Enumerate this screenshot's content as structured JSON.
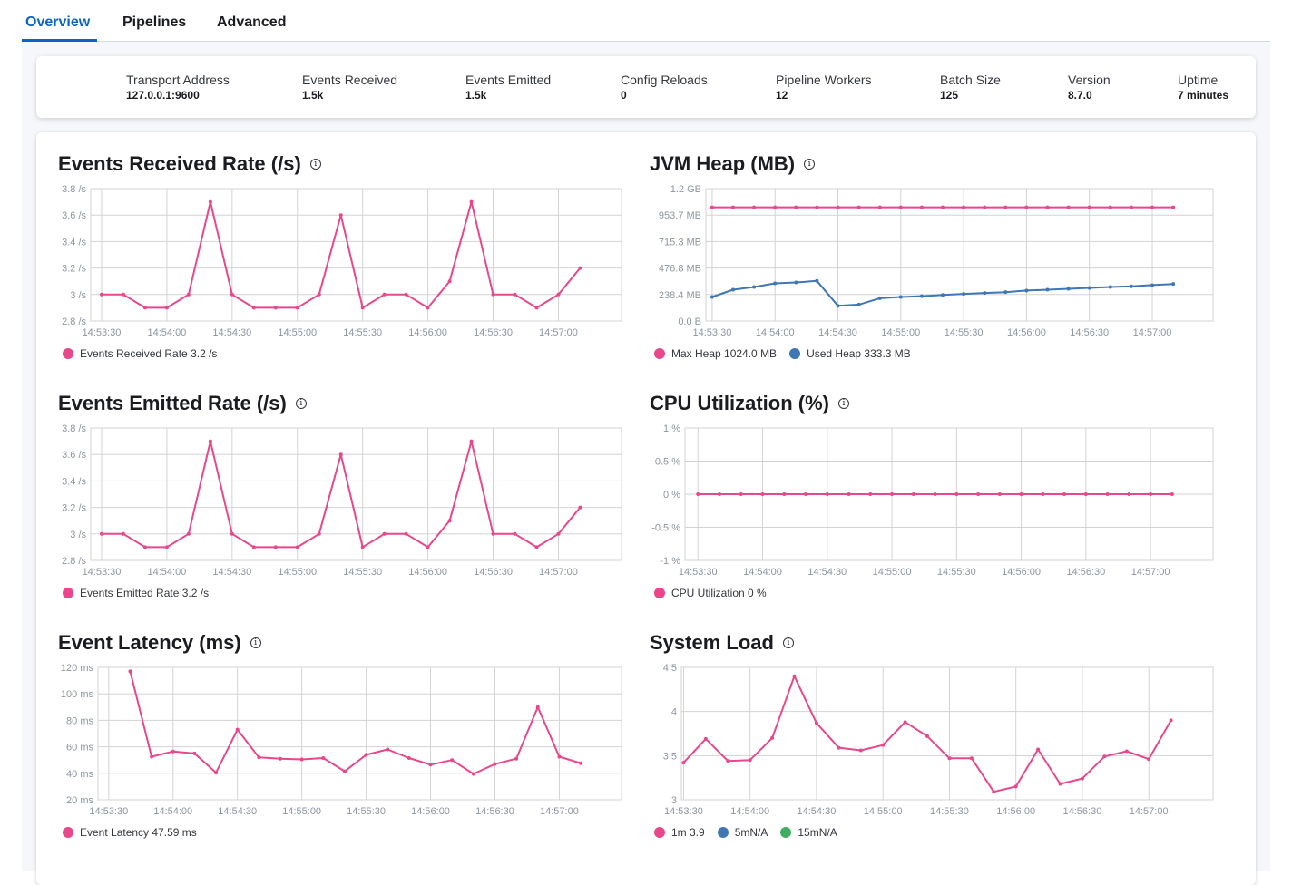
{
  "tabs": [
    {
      "label": "Overview",
      "active": true
    },
    {
      "label": "Pipelines"
    },
    {
      "label": "Advanced"
    }
  ],
  "stats": [
    {
      "label": "Transport Address",
      "value": "127.0.0.1:9600"
    },
    {
      "label": "Events Received",
      "value": "1.5k"
    },
    {
      "label": "Events Emitted",
      "value": "1.5k"
    },
    {
      "label": "Config Reloads",
      "value": "0"
    },
    {
      "label": "Pipeline Workers",
      "value": "12"
    },
    {
      "label": "Batch Size",
      "value": "125"
    },
    {
      "label": "Version",
      "value": "8.7.0"
    },
    {
      "label": "Uptime",
      "value": "7 minutes"
    }
  ],
  "colors": {
    "pink": "#e7488b",
    "blue": "#3f76b4",
    "green": "#3fae61",
    "accent": "#0b64c4"
  },
  "icons": {
    "info": "info-icon"
  },
  "chart_data": [
    {
      "id": "err",
      "type": "line",
      "title": "Events Received Rate (/s)",
      "info_icon": "ⓘ",
      "yticks": [
        2.8,
        3,
        3.2,
        3.4,
        3.6,
        3.8
      ],
      "ytick_labels": [
        "2.8 /s",
        "3 /s",
        "3.2 /s",
        "3.4 /s",
        "3.6 /s",
        "3.8 /s"
      ],
      "ylim": [
        2.8,
        3.8
      ],
      "xlim": [
        "14:53:25",
        "14:57:29"
      ],
      "xticks": [
        "14:53:30",
        "14:54:00",
        "14:54:30",
        "14:55:00",
        "14:55:30",
        "14:56:00",
        "14:56:30",
        "14:57:00"
      ],
      "grid": true,
      "series": [
        {
          "legend": "Events Received Rate 3.2 /s",
          "color": "#e7488b",
          "x": [
            "14:53:30",
            "14:53:40",
            "14:53:50",
            "14:54:00",
            "14:54:10",
            "14:54:20",
            "14:54:30",
            "14:54:40",
            "14:54:50",
            "14:55:00",
            "14:55:10",
            "14:55:20",
            "14:55:30",
            "14:55:40",
            "14:55:50",
            "14:56:00",
            "14:56:10",
            "14:56:20",
            "14:56:30",
            "14:56:40",
            "14:56:50",
            "14:57:00",
            "14:57:10"
          ],
          "y": [
            3,
            3,
            2.9,
            2.9,
            3,
            3.7,
            3,
            2.9,
            2.9,
            2.9,
            3,
            3.6,
            2.9,
            3,
            3,
            2.9,
            3.1,
            3.7,
            3,
            3,
            2.9,
            3,
            3.2
          ]
        }
      ]
    },
    {
      "id": "jvm",
      "type": "line",
      "title": "JVM Heap (MB)",
      "info_icon": "ⓘ",
      "yticks": [
        0,
        238.4,
        476.8,
        715.3,
        953.7,
        1192.1
      ],
      "ytick_labels": [
        "0.0 B",
        "238.4 MB",
        "476.8 MB",
        "715.3 MB",
        "953.7 MB",
        "1.2 GB"
      ],
      "ylim": [
        0,
        1192.1
      ],
      "xlim": [
        "14:53:27",
        "14:57:29"
      ],
      "xticks": [
        "14:53:30",
        "14:54:00",
        "14:54:30",
        "14:55:00",
        "14:55:30",
        "14:56:00",
        "14:56:30",
        "14:57:00"
      ],
      "grid": true,
      "series": [
        {
          "legend": "Max Heap 1024.0 MB",
          "color": "#e7488b",
          "x": [
            "14:53:30",
            "14:53:40",
            "14:53:50",
            "14:54:00",
            "14:54:10",
            "14:54:20",
            "14:54:30",
            "14:54:40",
            "14:54:50",
            "14:55:00",
            "14:55:10",
            "14:55:20",
            "14:55:30",
            "14:55:40",
            "14:55:50",
            "14:56:00",
            "14:56:10",
            "14:56:20",
            "14:56:30",
            "14:56:40",
            "14:56:50",
            "14:57:00",
            "14:57:10"
          ],
          "y": [
            1024,
            1024,
            1024,
            1024,
            1024,
            1024,
            1024,
            1024,
            1024,
            1024,
            1024,
            1024,
            1024,
            1024,
            1024,
            1024,
            1024,
            1024,
            1024,
            1024,
            1024,
            1024,
            1024
          ]
        },
        {
          "legend": "Used Heap 333.3 MB",
          "color": "#3f76b4",
          "x": [
            "14:53:30",
            "14:53:40",
            "14:53:50",
            "14:54:00",
            "14:54:10",
            "14:54:20",
            "14:54:30",
            "14:54:40",
            "14:54:50",
            "14:55:00",
            "14:55:10",
            "14:55:20",
            "14:55:30",
            "14:55:40",
            "14:55:50",
            "14:56:00",
            "14:56:10",
            "14:56:20",
            "14:56:30",
            "14:56:40",
            "14:56:50",
            "14:57:00",
            "14:57:10"
          ],
          "y": [
            216,
            282,
            306,
            339,
            347,
            361,
            137,
            148,
            205,
            216,
            224,
            235,
            244,
            252,
            260,
            274,
            282,
            290,
            298,
            306,
            312,
            323,
            333.3
          ]
        }
      ]
    },
    {
      "id": "emit",
      "type": "line",
      "title": "Events Emitted Rate (/s)",
      "info_icon": "ⓘ",
      "yticks": [
        2.8,
        3,
        3.2,
        3.4,
        3.6,
        3.8
      ],
      "ytick_labels": [
        "2.8 /s",
        "3 /s",
        "3.2 /s",
        "3.4 /s",
        "3.6 /s",
        "3.8 /s"
      ],
      "ylim": [
        2.8,
        3.8
      ],
      "xlim": [
        "14:53:25",
        "14:57:29"
      ],
      "xticks": [
        "14:53:30",
        "14:54:00",
        "14:54:30",
        "14:55:00",
        "14:55:30",
        "14:56:00",
        "14:56:30",
        "14:57:00"
      ],
      "grid": true,
      "series": [
        {
          "legend": "Events Emitted Rate 3.2 /s",
          "color": "#e7488b",
          "x": [
            "14:53:30",
            "14:53:40",
            "14:53:50",
            "14:54:00",
            "14:54:10",
            "14:54:20",
            "14:54:30",
            "14:54:40",
            "14:54:50",
            "14:55:00",
            "14:55:10",
            "14:55:20",
            "14:55:30",
            "14:55:40",
            "14:55:50",
            "14:56:00",
            "14:56:10",
            "14:56:20",
            "14:56:30",
            "14:56:40",
            "14:56:50",
            "14:57:00",
            "14:57:10"
          ],
          "y": [
            3,
            3,
            2.9,
            2.9,
            3,
            3.7,
            3,
            2.9,
            2.9,
            2.9,
            3,
            3.6,
            2.9,
            3,
            3,
            2.9,
            3.1,
            3.7,
            3,
            3,
            2.9,
            3,
            3.2
          ]
        }
      ]
    },
    {
      "id": "cpu",
      "type": "line",
      "title": "CPU Utilization (%)",
      "info_icon": "ⓘ",
      "yticks": [
        -1,
        -0.5,
        0,
        0.5,
        1
      ],
      "ytick_labels": [
        "-1 %",
        "-0.5 %",
        "0 %",
        "0.5 %",
        "1 %"
      ],
      "ylim": [
        -1,
        1
      ],
      "xlim": [
        "14:53:24",
        "14:57:29"
      ],
      "xticks": [
        "14:53:30",
        "14:54:00",
        "14:54:30",
        "14:55:00",
        "14:55:30",
        "14:56:00",
        "14:56:30",
        "14:57:00"
      ],
      "grid": true,
      "series": [
        {
          "legend": "CPU Utilization 0 %",
          "color": "#e7488b",
          "x": [
            "14:53:30",
            "14:53:40",
            "14:53:50",
            "14:54:00",
            "14:54:10",
            "14:54:20",
            "14:54:30",
            "14:54:40",
            "14:54:50",
            "14:55:00",
            "14:55:10",
            "14:55:20",
            "14:55:30",
            "14:55:40",
            "14:55:50",
            "14:56:00",
            "14:56:10",
            "14:56:20",
            "14:56:30",
            "14:56:40",
            "14:56:50",
            "14:57:00",
            "14:57:10"
          ],
          "y": [
            0,
            0,
            0,
            0,
            0,
            0,
            0,
            0,
            0,
            0,
            0,
            0,
            0,
            0,
            0,
            0,
            0,
            0,
            0,
            0,
            0,
            0,
            0
          ]
        }
      ]
    },
    {
      "id": "lat",
      "type": "line",
      "title": "Event Latency (ms)",
      "info_icon": "ⓘ",
      "yticks": [
        20,
        40,
        60,
        80,
        100,
        120
      ],
      "ytick_labels": [
        "20 ms",
        "40 ms",
        "60 ms",
        "80 ms",
        "100 ms",
        "120 ms"
      ],
      "ylim": [
        20,
        120
      ],
      "xlim": [
        "14:53:25",
        "14:57:29"
      ],
      "xticks": [
        "14:53:30",
        "14:54:00",
        "14:54:30",
        "14:55:00",
        "14:55:30",
        "14:56:00",
        "14:56:30",
        "14:57:00"
      ],
      "grid": true,
      "series": [
        {
          "legend": "Event Latency 47.59 ms",
          "color": "#e7488b",
          "x": [
            "14:53:40",
            "14:53:50",
            "14:54:00",
            "14:54:10",
            "14:54:20",
            "14:54:30",
            "14:54:40",
            "14:54:50",
            "14:55:00",
            "14:55:10",
            "14:55:20",
            "14:55:30",
            "14:55:40",
            "14:55:50",
            "14:56:00",
            "14:56:10",
            "14:56:20",
            "14:56:30",
            "14:56:40",
            "14:56:50",
            "14:57:00",
            "14:57:10"
          ],
          "y": [
            117,
            52.5,
            56.5,
            55,
            40.5,
            73,
            52,
            51,
            50.5,
            51.5,
            41.5,
            54,
            58,
            51.5,
            46.5,
            50,
            39.5,
            47,
            51,
            90,
            52.5,
            47.59
          ]
        }
      ]
    },
    {
      "id": "load",
      "type": "line",
      "title": "System Load",
      "info_icon": "ⓘ",
      "yticks": [
        3,
        3.5,
        4,
        4.5
      ],
      "ytick_labels": [
        "3",
        "3.5",
        "4",
        "4.5"
      ],
      "ylim": [
        3,
        4.5
      ],
      "xlim": [
        "14:53:29",
        "14:57:29"
      ],
      "xticks": [
        "14:53:30",
        "14:54:00",
        "14:54:30",
        "14:55:00",
        "14:55:30",
        "14:56:00",
        "14:56:30",
        "14:57:00"
      ],
      "grid": true,
      "series": [
        {
          "legend": "1m 3.9",
          "color": "#e7488b",
          "x": [
            "14:53:30",
            "14:53:40",
            "14:53:50",
            "14:54:00",
            "14:54:10",
            "14:54:20",
            "14:54:30",
            "14:54:40",
            "14:54:50",
            "14:55:00",
            "14:55:10",
            "14:55:20",
            "14:55:30",
            "14:55:40",
            "14:55:50",
            "14:56:00",
            "14:56:10",
            "14:56:20",
            "14:56:30",
            "14:56:40",
            "14:56:50",
            "14:57:00",
            "14:57:10"
          ],
          "y": [
            3.42,
            3.69,
            3.44,
            3.45,
            3.7,
            4.4,
            3.87,
            3.59,
            3.56,
            3.62,
            3.88,
            3.72,
            3.47,
            3.47,
            3.09,
            3.15,
            3.57,
            3.18,
            3.24,
            3.49,
            3.55,
            3.46,
            3.9
          ]
        },
        {
          "legend": "5mN/A",
          "color": "#3f76b4",
          "x": [],
          "y": []
        },
        {
          "legend": "15mN/A",
          "color": "#3fae61",
          "x": [],
          "y": []
        }
      ]
    }
  ]
}
